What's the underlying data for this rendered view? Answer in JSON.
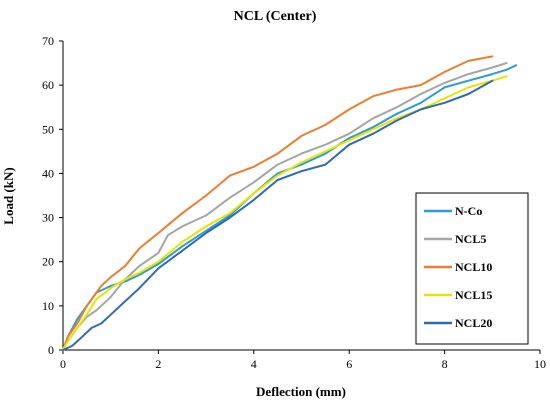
{
  "chart_data": {
    "type": "line",
    "title": "NCL (Center)",
    "xlabel": "Deflection (mm)",
    "ylabel": "Load (kN)",
    "xlim": [
      0,
      10
    ],
    "ylim": [
      0,
      70
    ],
    "xticks": [
      0,
      2,
      4,
      6,
      8,
      10
    ],
    "yticks": [
      0,
      10,
      20,
      30,
      40,
      50,
      60,
      70
    ],
    "grid": false,
    "legend_position": "right",
    "series": [
      {
        "name": "N-Co",
        "color": "#2E9BD6",
        "points": [
          [
            0,
            0
          ],
          [
            0.1,
            3
          ],
          [
            0.3,
            7
          ],
          [
            0.5,
            10
          ],
          [
            0.7,
            13
          ],
          [
            1.0,
            14.5
          ],
          [
            1.3,
            15.5
          ],
          [
            1.6,
            17
          ],
          [
            2.0,
            19.5
          ],
          [
            2.5,
            23.5
          ],
          [
            3.0,
            27
          ],
          [
            3.5,
            30.5
          ],
          [
            4.0,
            35.5
          ],
          [
            4.5,
            40
          ],
          [
            5.0,
            42
          ],
          [
            5.5,
            44.5
          ],
          [
            6.0,
            48
          ],
          [
            6.5,
            50.5
          ],
          [
            7.0,
            53.5
          ],
          [
            7.5,
            56
          ],
          [
            8.0,
            59.5
          ],
          [
            8.5,
            61
          ],
          [
            9.0,
            62.5
          ],
          [
            9.3,
            63.5
          ],
          [
            9.5,
            64.5
          ]
        ]
      },
      {
        "name": "NCL5",
        "color": "#A5A5A5",
        "points": [
          [
            0,
            0
          ],
          [
            0.1,
            2
          ],
          [
            0.3,
            5
          ],
          [
            0.5,
            7.5
          ],
          [
            0.7,
            9
          ],
          [
            1.0,
            12
          ],
          [
            1.3,
            16
          ],
          [
            1.6,
            19
          ],
          [
            2.0,
            22
          ],
          [
            2.2,
            26
          ],
          [
            2.5,
            28
          ],
          [
            3.0,
            30.5
          ],
          [
            3.5,
            34.5
          ],
          [
            4.0,
            38
          ],
          [
            4.5,
            42
          ],
          [
            5.0,
            44.5
          ],
          [
            5.5,
            46.5
          ],
          [
            6.0,
            49
          ],
          [
            6.5,
            52.5
          ],
          [
            7.0,
            55
          ],
          [
            7.5,
            58
          ],
          [
            8.0,
            60.5
          ],
          [
            8.5,
            62.5
          ],
          [
            9.0,
            64
          ],
          [
            9.3,
            65
          ]
        ]
      },
      {
        "name": "NCL10",
        "color": "#ED7D31",
        "points": [
          [
            0,
            0
          ],
          [
            0.1,
            3
          ],
          [
            0.3,
            6
          ],
          [
            0.5,
            10
          ],
          [
            0.8,
            14.5
          ],
          [
            1.0,
            16.5
          ],
          [
            1.3,
            19
          ],
          [
            1.6,
            23
          ],
          [
            2.0,
            26.5
          ],
          [
            2.5,
            31
          ],
          [
            3.0,
            35
          ],
          [
            3.5,
            39.5
          ],
          [
            4.0,
            41.5
          ],
          [
            4.5,
            44.5
          ],
          [
            5.0,
            48.5
          ],
          [
            5.5,
            51
          ],
          [
            6.0,
            54.5
          ],
          [
            6.5,
            57.5
          ],
          [
            7.0,
            59
          ],
          [
            7.5,
            60
          ],
          [
            8.0,
            63
          ],
          [
            8.5,
            65.5
          ],
          [
            9.0,
            66.5
          ]
        ]
      },
      {
        "name": "NCL15",
        "color": "#E6E600",
        "points": [
          [
            0,
            0
          ],
          [
            0.1,
            2
          ],
          [
            0.3,
            5
          ],
          [
            0.5,
            8
          ],
          [
            0.7,
            11.5
          ],
          [
            1.0,
            14
          ],
          [
            1.3,
            16
          ],
          [
            1.6,
            17.5
          ],
          [
            2.0,
            20
          ],
          [
            2.5,
            24.5
          ],
          [
            3.0,
            28
          ],
          [
            3.5,
            31
          ],
          [
            4.0,
            35.5
          ],
          [
            4.5,
            39.5
          ],
          [
            5.0,
            42.5
          ],
          [
            5.5,
            45
          ],
          [
            6.0,
            47.5
          ],
          [
            6.5,
            50
          ],
          [
            7.0,
            52.5
          ],
          [
            7.5,
            54.5
          ],
          [
            8.0,
            57
          ],
          [
            8.5,
            59.5
          ],
          [
            9.0,
            61
          ],
          [
            9.3,
            62
          ]
        ]
      },
      {
        "name": "NCL20",
        "color": "#2F6BB3",
        "points": [
          [
            0,
            0
          ],
          [
            0.2,
            1
          ],
          [
            0.4,
            3
          ],
          [
            0.6,
            5
          ],
          [
            0.8,
            6
          ],
          [
            1.0,
            8
          ],
          [
            1.3,
            11
          ],
          [
            1.6,
            14
          ],
          [
            2.0,
            18.5
          ],
          [
            2.5,
            22.5
          ],
          [
            3.0,
            26.5
          ],
          [
            3.5,
            30
          ],
          [
            4.0,
            34
          ],
          [
            4.5,
            38.5
          ],
          [
            5.0,
            40.5
          ],
          [
            5.5,
            42
          ],
          [
            6.0,
            46.5
          ],
          [
            6.5,
            49
          ],
          [
            7.0,
            52
          ],
          [
            7.5,
            54.5
          ],
          [
            8.0,
            56
          ],
          [
            8.5,
            58
          ],
          [
            9.0,
            61
          ]
        ]
      }
    ]
  }
}
